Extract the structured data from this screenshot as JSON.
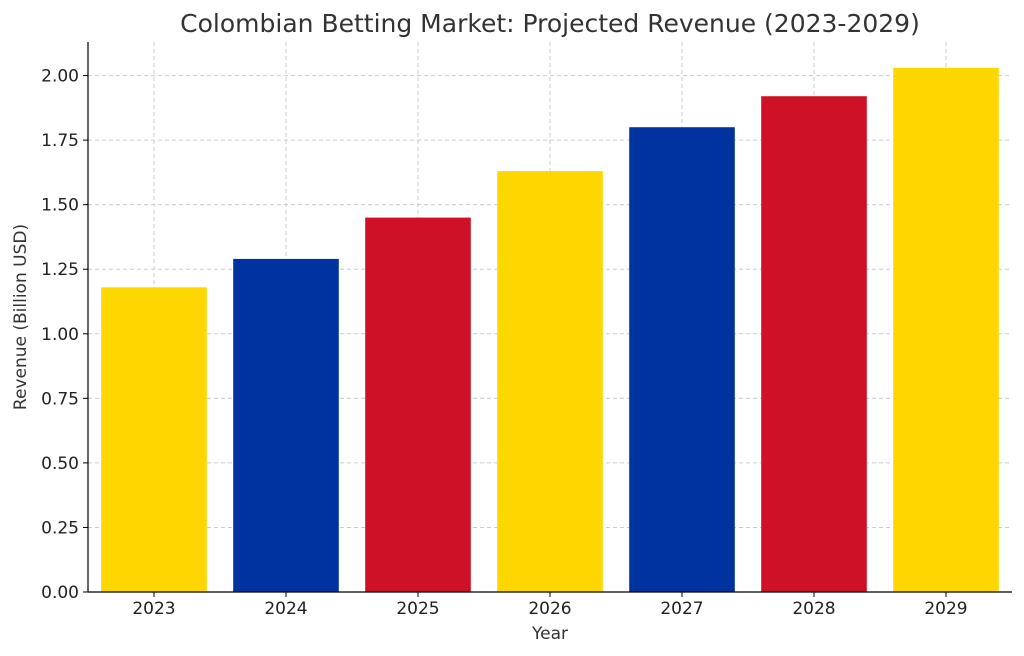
{
  "chart_data": {
    "type": "bar",
    "title": "Colombian Betting Market: Projected Revenue (2023-2029)",
    "xlabel": "Year",
    "ylabel": "Revenue (Billion USD)",
    "categories": [
      "2023",
      "2024",
      "2025",
      "2026",
      "2027",
      "2028",
      "2029"
    ],
    "values": [
      1.18,
      1.29,
      1.45,
      1.63,
      1.8,
      1.92,
      2.03
    ],
    "bar_colors": [
      "#FFD700",
      "#0033A0",
      "#CE1126",
      "#FFD700",
      "#0033A0",
      "#CE1126",
      "#FFD700"
    ],
    "ylim": [
      0,
      2.13
    ],
    "yticks": [
      0.0,
      0.25,
      0.5,
      0.75,
      1.0,
      1.25,
      1.5,
      1.75,
      2.0
    ],
    "ytick_labels": [
      "0.00",
      "0.25",
      "0.50",
      "0.75",
      "1.00",
      "1.25",
      "1.50",
      "1.75",
      "2.00"
    ],
    "grid": true,
    "legend": "none"
  }
}
